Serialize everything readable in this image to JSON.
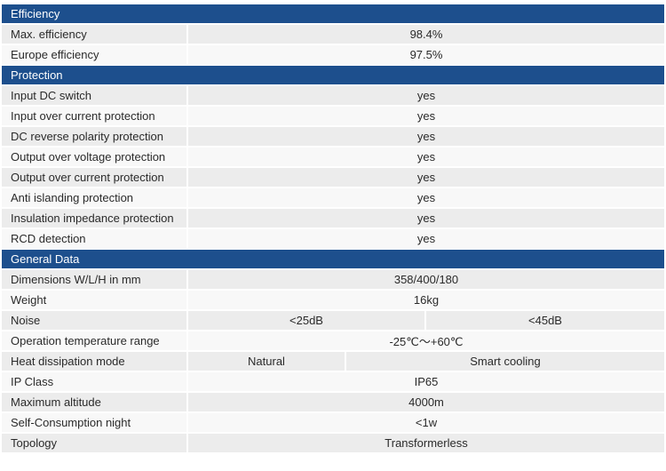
{
  "sections": [
    {
      "title": "Efficiency",
      "rows": [
        {
          "label": "Max. efficiency",
          "values": [
            "98.4%"
          ]
        },
        {
          "label": "Europe efficiency",
          "values": [
            "97.5%"
          ]
        }
      ]
    },
    {
      "title": "Protection",
      "rows": [
        {
          "label": "Input DC switch",
          "values": [
            "yes"
          ]
        },
        {
          "label": "Input over current protection",
          "values": [
            "yes"
          ]
        },
        {
          "label": "DC reverse polarity protection",
          "values": [
            "yes"
          ]
        },
        {
          "label": "Output over voltage protection",
          "values": [
            "yes"
          ]
        },
        {
          "label": "Output over current protection",
          "values": [
            "yes"
          ]
        },
        {
          "label": "Anti islanding protection",
          "values": [
            "yes"
          ]
        },
        {
          "label": "Insulation impedance protection",
          "values": [
            "yes"
          ]
        },
        {
          "label": "RCD detection",
          "values": [
            "yes"
          ]
        }
      ]
    },
    {
      "title": "General Data",
      "rows": [
        {
          "label": "Dimensions  W/L/H  in mm",
          "values": [
            "358/400/180"
          ]
        },
        {
          "label": "Weight",
          "values": [
            "16kg"
          ]
        },
        {
          "label": "Noise",
          "values": [
            "<25dB",
            "<45dB"
          ]
        },
        {
          "label": "Operation temperature range",
          "values": [
            "-25℃～+60℃"
          ]
        },
        {
          "label": "Heat dissipation mode",
          "values": [
            "Natural",
            "Smart cooling"
          ]
        },
        {
          "label": "IP Class",
          "values": [
            "IP65"
          ]
        },
        {
          "label": "Maximum altitude",
          "values": [
            "4000m"
          ]
        },
        {
          "label": "Self-Consumption night",
          "values": [
            "<1w"
          ]
        },
        {
          "label": "Topology",
          "values": [
            "Transformerless"
          ]
        }
      ]
    }
  ]
}
